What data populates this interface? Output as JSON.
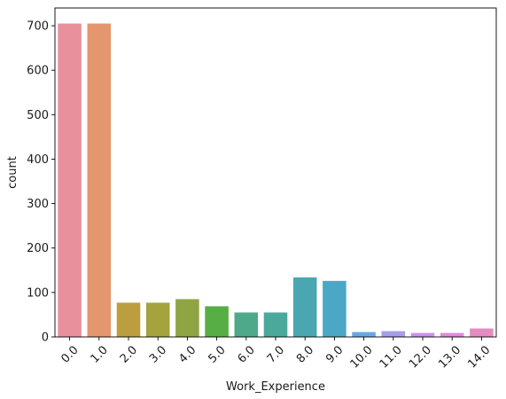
{
  "chart_data": {
    "type": "bar",
    "title": "",
    "xlabel": "Work_Experience",
    "ylabel": "count",
    "categories": [
      "0.0",
      "1.0",
      "2.0",
      "3.0",
      "4.0",
      "5.0",
      "6.0",
      "7.0",
      "8.0",
      "9.0",
      "10.0",
      "11.0",
      "12.0",
      "13.0",
      "14.0"
    ],
    "values": [
      705,
      705,
      77,
      77,
      85,
      69,
      55,
      55,
      134,
      126,
      11,
      13,
      9,
      9,
      19
    ],
    "yticks": [
      0,
      100,
      200,
      300,
      400,
      500,
      600,
      700
    ],
    "ylim": [
      0,
      740
    ],
    "grid": false,
    "colors": [
      "#e8919c",
      "#e4966d",
      "#bc9e3f",
      "#a4a33d",
      "#8fa543",
      "#56ae45",
      "#4ea98a",
      "#4aa99b",
      "#4aa6b1",
      "#4ba7c6",
      "#6aa8e3",
      "#a59ee8",
      "#cd91e7",
      "#e28adb",
      "#e38cc1"
    ]
  }
}
